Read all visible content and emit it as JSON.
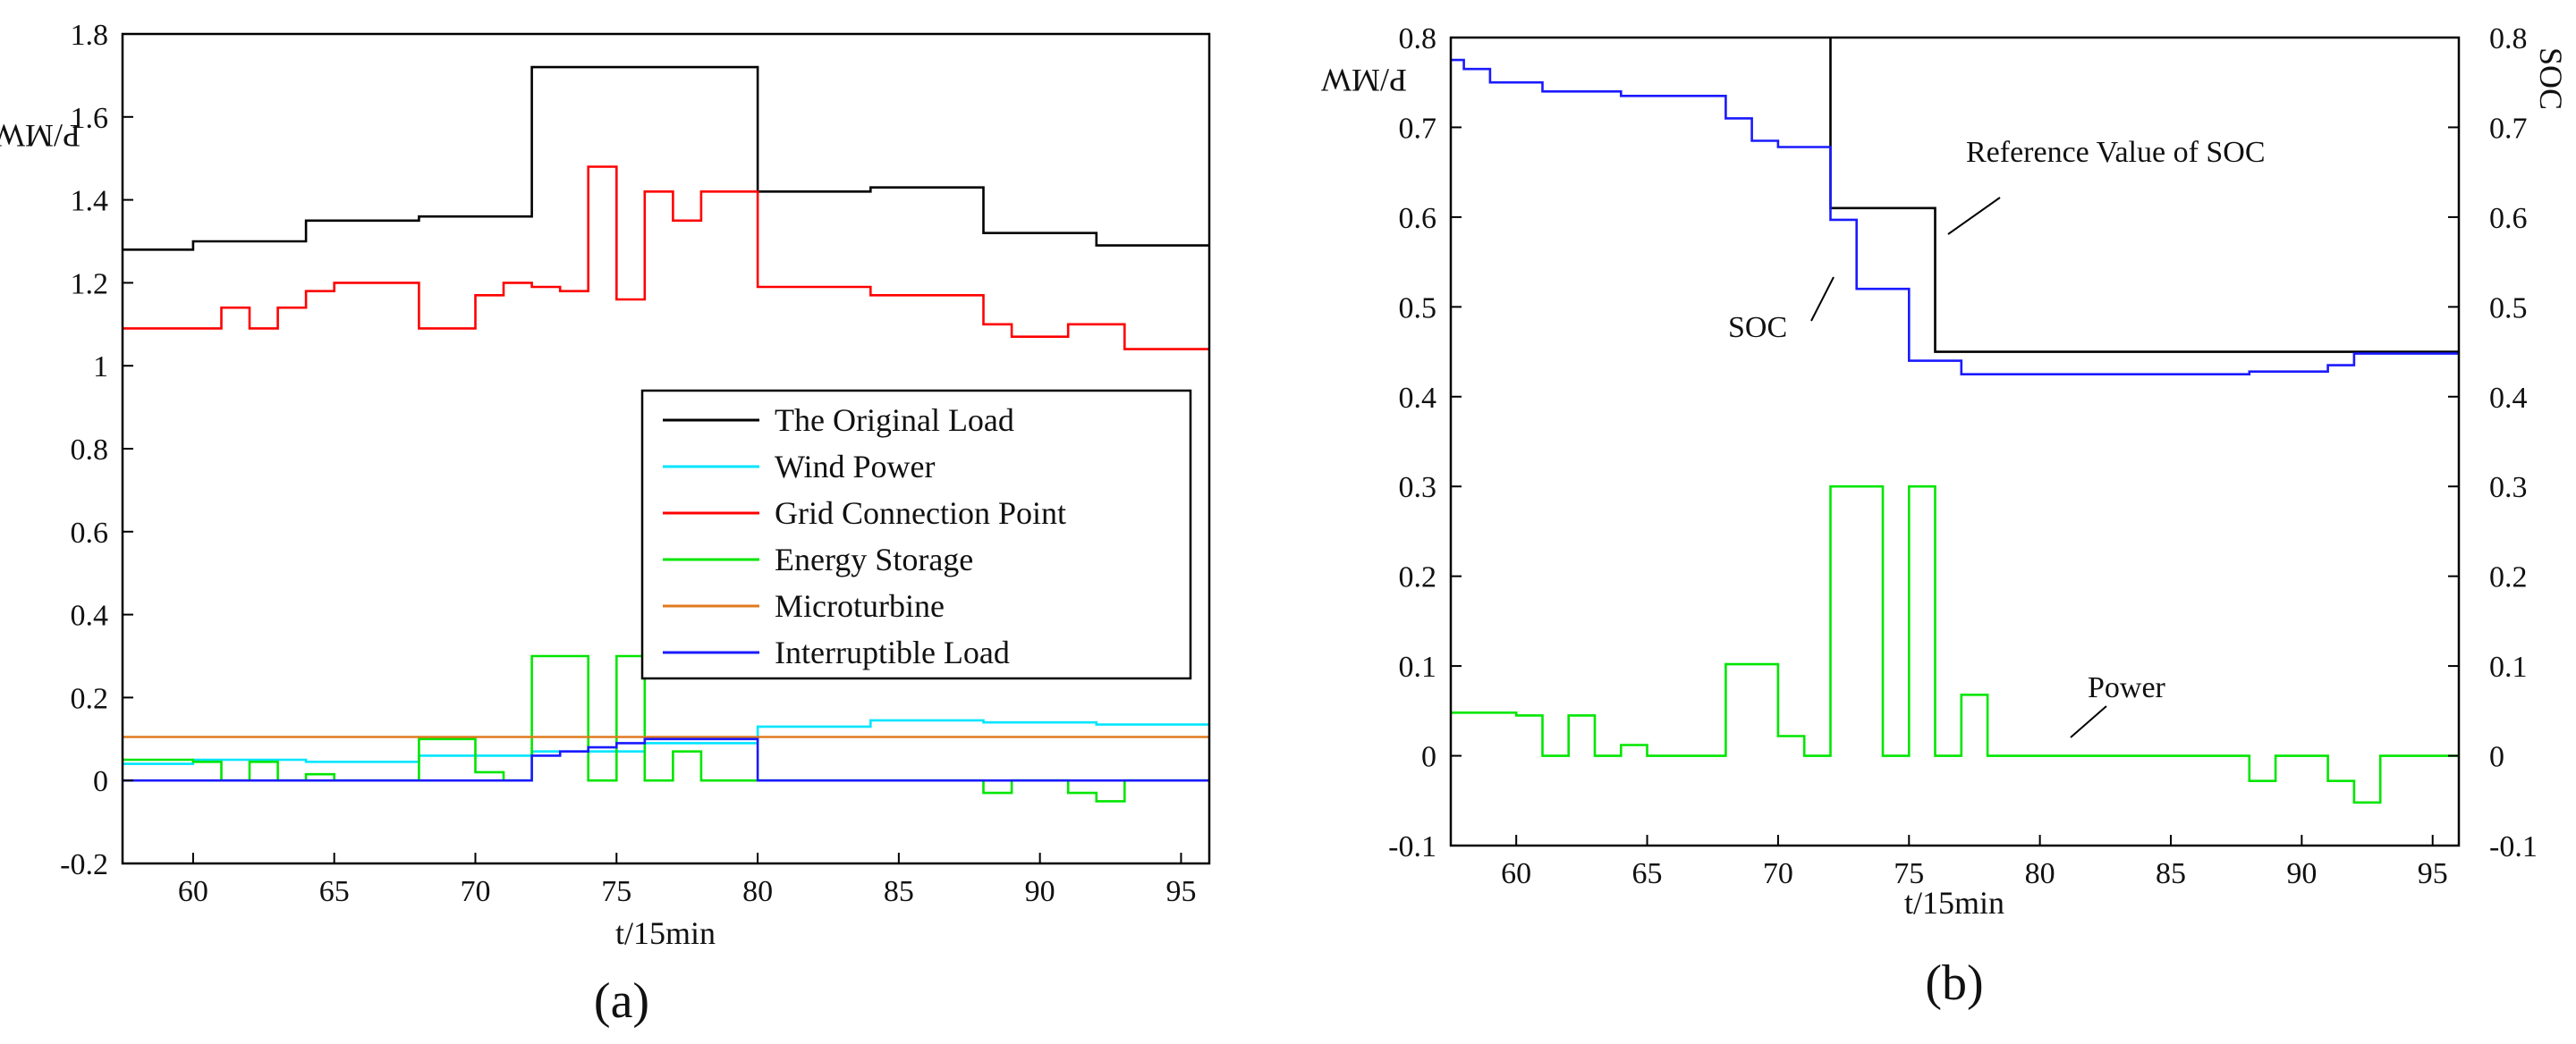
{
  "chart_data": [
    {
      "type": "line",
      "step": true,
      "panel_label": "(a)",
      "xlabel": "t/15min",
      "ylabel": "P/MW",
      "xlim": [
        57.5,
        96
      ],
      "ylim": [
        -0.2,
        1.8
      ],
      "x_ticks": [
        "60",
        "65",
        "70",
        "75",
        "80",
        "85",
        "90",
        "95"
      ],
      "y_ticks": [
        "-0.2",
        "0",
        "0.2",
        "0.4",
        "0.6",
        "0.8",
        "1",
        "1.2",
        "1.4",
        "1.6",
        "1.8"
      ],
      "legend_position": "center-right",
      "series": [
        {
          "name": "The Original Load",
          "color": "#000000",
          "x": [
            57.5,
            60,
            64,
            68,
            72,
            80,
            84,
            88,
            92,
            96
          ],
          "values": [
            1.28,
            1.3,
            1.35,
            1.36,
            1.72,
            1.42,
            1.43,
            1.32,
            1.29,
            1.29
          ]
        },
        {
          "name": "Wind Power",
          "color": "#00e5ff",
          "x": [
            57.5,
            60,
            64,
            68,
            72,
            76,
            80,
            84,
            88,
            92,
            96
          ],
          "values": [
            0.04,
            0.05,
            0.045,
            0.06,
            0.07,
            0.09,
            0.13,
            0.145,
            0.14,
            0.135,
            0.135
          ]
        },
        {
          "name": "Grid Connection Point",
          "color": "#ff0000",
          "x": [
            57.5,
            61,
            62,
            63,
            64,
            65,
            68,
            70,
            71,
            72,
            73,
            74,
            75,
            76,
            77,
            78,
            80,
            84,
            88,
            89,
            91,
            93,
            96
          ],
          "values": [
            1.09,
            1.14,
            1.09,
            1.14,
            1.18,
            1.2,
            1.09,
            1.17,
            1.2,
            1.19,
            1.18,
            1.48,
            1.16,
            1.42,
            1.35,
            1.42,
            1.19,
            1.17,
            1.1,
            1.07,
            1.1,
            1.04,
            1.04
          ]
        },
        {
          "name": "Energy Storage",
          "color": "#00e600",
          "x": [
            57.5,
            60,
            61,
            62,
            63,
            64,
            65,
            68,
            70,
            71,
            72,
            74,
            75,
            76,
            77,
            78,
            80,
            88,
            89,
            91,
            92,
            93,
            96
          ],
          "values": [
            0.05,
            0.045,
            0.0,
            0.045,
            0.0,
            0.015,
            0.0,
            0.1,
            0.02,
            0.0,
            0.3,
            0.0,
            0.3,
            0.0,
            0.07,
            0.0,
            0.0,
            -0.03,
            0.0,
            -0.03,
            -0.05,
            0.0,
            0.0
          ]
        },
        {
          "name": "Microturbine",
          "color": "#e07a1f",
          "x": [
            57.5,
            96
          ],
          "values": [
            0.105,
            0.105
          ]
        },
        {
          "name": "Interruptible Load",
          "color": "#1a1aff",
          "x": [
            57.5,
            72,
            73,
            74,
            75,
            76,
            80,
            96
          ],
          "values": [
            0.0,
            0.06,
            0.07,
            0.08,
            0.09,
            0.1,
            0.0,
            0.0
          ]
        }
      ]
    },
    {
      "type": "line",
      "step": true,
      "panel_label": "(b)",
      "xlabel": "t/15min",
      "ylabel": "P/MW",
      "y2label": "SOC",
      "xlim": [
        57.5,
        96
      ],
      "ylim": [
        -0.1,
        0.8
      ],
      "y2lim": [
        -0.1,
        0.8
      ],
      "x_ticks": [
        "60",
        "65",
        "70",
        "75",
        "80",
        "85",
        "90",
        "95"
      ],
      "y_ticks": [
        "-0.1",
        "0",
        "0.1",
        "0.2",
        "0.3",
        "0.4",
        "0.5",
        "0.6",
        "0.7",
        "0.8"
      ],
      "y2_ticks": [
        "-0.1",
        "0",
        "0.1",
        "0.2",
        "0.3",
        "0.4",
        "0.5",
        "0.6",
        "0.7",
        "0.8"
      ],
      "annotations": [
        "Reference Value of SOC",
        "SOC",
        "Power"
      ],
      "series": [
        {
          "name": "Reference Value of SOC",
          "color": "#000000",
          "x": [
            72,
            76,
            96
          ],
          "values": [
            0.61,
            0.45,
            0.45
          ],
          "start_from_top": true
        },
        {
          "name": "SOC",
          "color": "#1a1aff",
          "x": [
            57.5,
            58,
            59,
            61,
            64,
            68,
            69,
            70,
            72,
            73,
            75,
            77,
            88,
            91,
            92,
            96
          ],
          "values": [
            0.775,
            0.765,
            0.75,
            0.74,
            0.735,
            0.71,
            0.685,
            0.678,
            0.597,
            0.52,
            0.44,
            0.425,
            0.428,
            0.435,
            0.448,
            0.448
          ]
        },
        {
          "name": "Power",
          "color": "#00e600",
          "x": [
            57.5,
            60,
            61,
            62,
            63,
            64,
            65,
            68,
            70,
            71,
            72,
            74,
            75,
            76,
            77,
            78,
            80,
            88,
            89,
            91,
            92,
            93,
            96
          ],
          "values": [
            0.048,
            0.045,
            0.0,
            0.045,
            0.0,
            0.012,
            0.0,
            0.102,
            0.022,
            0.0,
            0.3,
            0.0,
            0.3,
            0.0,
            0.068,
            0.0,
            0.0,
            -0.028,
            0.0,
            -0.028,
            -0.052,
            0.0,
            0.0
          ]
        }
      ]
    }
  ]
}
